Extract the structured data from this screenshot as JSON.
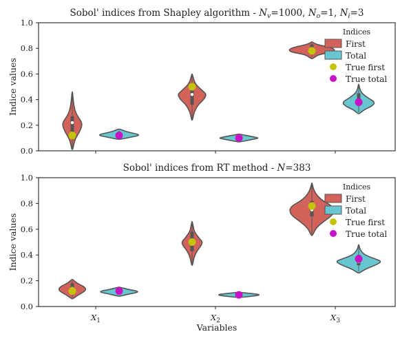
{
  "colors": {
    "first": "#d2625a",
    "total": "#67c6cf",
    "true_first": "#c4c20a",
    "true_total": "#c712c7",
    "violin_edge": "#555555"
  },
  "chart_data": [
    {
      "type": "violin",
      "title_text": "Sobol' indices from Shapley algorithm - ",
      "title_math": [
        "N",
        "v",
        "=1000, ",
        "N",
        "o",
        "=1, ",
        "N",
        "i",
        "=3"
      ],
      "ylabel": "Indice values",
      "xlabel": "",
      "ylim": [
        0.0,
        1.0
      ],
      "yticks": [
        "0.0",
        "0.2",
        "0.4",
        "0.6",
        "0.8",
        "1.0"
      ],
      "categories": [
        "X1",
        "X2",
        "X3"
      ],
      "legend": {
        "title": "Indices",
        "entries": [
          "First",
          "Total",
          "True first",
          "True total"
        ],
        "placement": "top-right"
      },
      "series": [
        {
          "name": "First",
          "violins": [
            {
              "y": [
                0.01,
                0.05,
                0.1,
                0.15,
                0.2,
                0.23,
                0.27,
                0.32,
                0.38,
                0.46
              ],
              "w": [
                0.02,
                0.06,
                0.14,
                0.32,
                0.42,
                0.38,
                0.22,
                0.1,
                0.05,
                0.01
              ],
              "median": 0.22
            },
            {
              "y": [
                0.24,
                0.3,
                0.36,
                0.4,
                0.44,
                0.47,
                0.52,
                0.57,
                0.6
              ],
              "w": [
                0.02,
                0.08,
                0.26,
                0.5,
                0.62,
                0.44,
                0.14,
                0.05,
                0.01
              ],
              "median": 0.44
            },
            {
              "y": [
                0.72,
                0.75,
                0.77,
                0.79,
                0.81,
                0.83,
                0.85
              ],
              "w": [
                0.05,
                0.25,
                0.88,
                1.0,
                0.75,
                0.2,
                0.02
              ],
              "median": 0.78
            }
          ]
        },
        {
          "name": "Total",
          "violins": [
            {
              "y": [
                0.09,
                0.11,
                0.12,
                0.13,
                0.15,
                0.17
              ],
              "w": [
                0.05,
                0.6,
                0.85,
                0.8,
                0.3,
                0.03
              ],
              "median": 0.12
            },
            {
              "y": [
                0.07,
                0.09,
                0.1,
                0.11,
                0.13
              ],
              "w": [
                0.05,
                0.6,
                0.88,
                0.6,
                0.04
              ],
              "median": 0.1
            },
            {
              "y": [
                0.29,
                0.32,
                0.35,
                0.38,
                0.41,
                0.45,
                0.48,
                0.52
              ],
              "w": [
                0.03,
                0.22,
                0.58,
                0.7,
                0.42,
                0.13,
                0.05,
                0.01
              ],
              "median": 0.38
            }
          ]
        }
      ],
      "true_first": [
        0.12,
        0.5,
        0.78
      ],
      "true_total": [
        0.12,
        0.1,
        0.38
      ]
    },
    {
      "type": "violin",
      "title_text": "Sobol' indices from RT method - ",
      "title_math": [
        "N",
        "",
        "=383"
      ],
      "ylabel": "Indice values",
      "xlabel": "Variables",
      "ylim": [
        0.0,
        1.0
      ],
      "yticks": [
        "0.0",
        "0.2",
        "0.4",
        "0.6",
        "0.8",
        "1.0"
      ],
      "categories": [
        "X1",
        "X2",
        "X3"
      ],
      "legend": {
        "title": "Indices",
        "entries": [
          "First",
          "Total",
          "True first",
          "True total"
        ],
        "placement": "top-right"
      },
      "series": [
        {
          "name": "First",
          "violins": [
            {
              "y": [
                0.06,
                0.09,
                0.12,
                0.14,
                0.16,
                0.18,
                0.21
              ],
              "w": [
                0.03,
                0.25,
                0.55,
                0.58,
                0.45,
                0.2,
                0.02
              ],
              "median": 0.14
            },
            {
              "y": [
                0.32,
                0.38,
                0.43,
                0.47,
                0.5,
                0.53,
                0.58,
                0.62,
                0.66
              ],
              "w": [
                0.02,
                0.08,
                0.2,
                0.38,
                0.45,
                0.3,
                0.1,
                0.05,
                0.01
              ],
              "median": 0.5
            },
            {
              "y": [
                0.55,
                0.61,
                0.66,
                0.7,
                0.74,
                0.78,
                0.82,
                0.87,
                0.92,
                0.96
              ],
              "w": [
                0.02,
                0.18,
                0.5,
                0.82,
                0.96,
                0.88,
                0.46,
                0.18,
                0.05,
                0.01
              ],
              "median": 0.75
            }
          ]
        },
        {
          "name": "Total",
          "violins": [
            {
              "y": [
                0.08,
                0.1,
                0.11,
                0.12,
                0.13,
                0.15
              ],
              "w": [
                0.04,
                0.5,
                0.8,
                0.78,
                0.45,
                0.03
              ],
              "median": 0.12
            },
            {
              "y": [
                0.07,
                0.08,
                0.09,
                0.1,
                0.11
              ],
              "w": [
                0.04,
                0.6,
                0.95,
                0.6,
                0.04
              ],
              "median": 0.09
            },
            {
              "y": [
                0.26,
                0.29,
                0.32,
                0.35,
                0.37,
                0.4,
                0.44,
                0.48
              ],
              "w": [
                0.03,
                0.28,
                0.7,
                1.0,
                0.7,
                0.25,
                0.06,
                0.01
              ],
              "median": 0.35
            }
          ]
        }
      ],
      "true_first": [
        0.12,
        0.5,
        0.78
      ],
      "true_total": [
        0.12,
        0.09,
        0.37
      ]
    }
  ]
}
